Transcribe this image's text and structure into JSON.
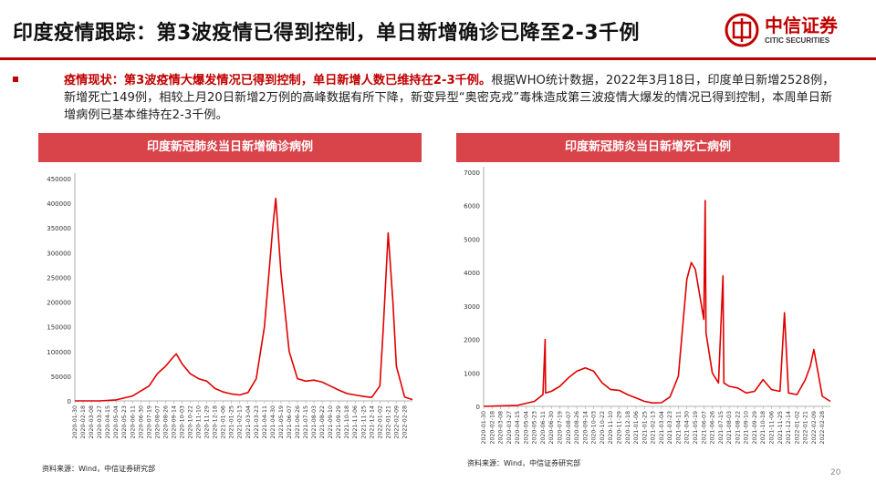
{
  "title": "印度疫情跟踪：第3波疫情已得到控制，单日新增确诊已降至2-3千例",
  "logo": {
    "name_cn": "中信证券",
    "name_en": "CITIC SECURITIES"
  },
  "summary": {
    "highlight": "疫情现状：第3波疫情大爆发情况已得到控制，单日新增人数已维持在2-3千例。",
    "body": "根据WHO统计数据，2022年3月18日，印度单日新增2528例，新增死亡149例，相较上月20日新增2万例的高峰数据有所下降，新变异型“奥密克戎”毒株造成第三波疫情大爆发的情况已得到控制，本周单日新增病例已基本维持在2-3千例。"
  },
  "colors": {
    "accent": "#c00000",
    "header": "#d9434a",
    "line": "#e00000"
  },
  "source_left": "资料来源：Wind，中信证券研究部",
  "source_right": "资料来源：Wind，中信证券研究部",
  "page_number": "20",
  "chart_data": [
    {
      "type": "line",
      "title": "印度新冠肺炎当日新增确诊病例",
      "xlabel": "",
      "ylabel": "",
      "ylim": [
        0,
        450000
      ],
      "yticks": [
        "0",
        "50000",
        "100000",
        "150000",
        "200000",
        "250000",
        "300000",
        "350000",
        "400000",
        "450000"
      ],
      "xticks": [
        "2020-01-30",
        "2020-02-18",
        "2020-03-08",
        "2020-03-27",
        "2020-04-15",
        "2020-05-04",
        "2020-05-23",
        "2020-06-11",
        "2020-06-30",
        "2020-07-19",
        "2020-08-07",
        "2020-08-26",
        "2020-09-14",
        "2020-10-03",
        "2020-10-22",
        "2020-11-10",
        "2020-11-29",
        "2020-12-18",
        "2021-01-06",
        "2021-01-25",
        "2021-02-13",
        "2021-03-04",
        "2021-03-23",
        "2021-04-11",
        "2021-04-30",
        "2021-05-19",
        "2021-06-07",
        "2021-06-26",
        "2021-07-15",
        "2021-08-03",
        "2021-08-22",
        "2021-09-10",
        "2021-09-29",
        "2021-10-18",
        "2021-11-06",
        "2021-11-25",
        "2021-12-14",
        "2022-01-02",
        "2022-01-21",
        "2022-02-09",
        "2022-02-28"
      ],
      "series": [
        {
          "x": [
            "2020-01-30",
            "2020-03-27",
            "2020-05-04",
            "2020-06-11",
            "2020-07-19",
            "2020-08-07",
            "2020-08-26",
            "2020-09-14",
            "2020-09-20",
            "2020-10-03",
            "2020-10-22",
            "2020-11-10",
            "2020-11-29",
            "2020-12-18",
            "2021-01-06",
            "2021-01-25",
            "2021-02-13",
            "2021-03-04",
            "2021-03-23",
            "2021-04-11",
            "2021-04-30",
            "2021-05-07",
            "2021-05-19",
            "2021-06-07",
            "2021-06-26",
            "2021-07-15",
            "2021-08-03",
            "2021-08-22",
            "2021-09-10",
            "2021-09-29",
            "2021-10-18",
            "2021-11-06",
            "2021-11-25",
            "2021-12-14",
            "2022-01-02",
            "2022-01-10",
            "2022-01-21",
            "2022-02-01",
            "2022-02-09",
            "2022-02-28",
            "2022-03-18"
          ],
          "values": [
            0,
            0,
            2000,
            10000,
            30000,
            55000,
            70000,
            90000,
            95000,
            75000,
            55000,
            45000,
            40000,
            25000,
            18000,
            14000,
            12000,
            17000,
            45000,
            150000,
            350000,
            410000,
            260000,
            100000,
            45000,
            40000,
            42000,
            38000,
            30000,
            22000,
            15000,
            12000,
            9000,
            7000,
            30000,
            150000,
            340000,
            200000,
            70000,
            8000,
            2528
          ]
        }
      ]
    },
    {
      "type": "line",
      "title": "印度新冠肺炎当日新增死亡病例",
      "xlabel": "",
      "ylabel": "",
      "ylim": [
        0,
        7000
      ],
      "yticks": [
        "0",
        "1000",
        "2000",
        "3000",
        "4000",
        "5000",
        "6000",
        "7000"
      ],
      "xticks": [
        "2020-01-30",
        "2020-02-18",
        "2020-03-08",
        "2020-03-27",
        "2020-04-15",
        "2020-05-04",
        "2020-05-23",
        "2020-06-11",
        "2020-06-30",
        "2020-07-19",
        "2020-08-07",
        "2020-08-26",
        "2020-09-14",
        "2020-10-03",
        "2020-10-22",
        "2020-11-10",
        "2020-11-29",
        "2020-12-18",
        "2021-01-06",
        "2021-01-25",
        "2021-02-13",
        "2021-03-04",
        "2021-03-23",
        "2021-04-11",
        "2021-04-30",
        "2021-05-19",
        "2021-06-07",
        "2021-06-26",
        "2021-07-15",
        "2021-08-03",
        "2021-08-22",
        "2021-09-10",
        "2021-09-29",
        "2021-10-18",
        "2021-11-06",
        "2021-11-25",
        "2021-12-14",
        "2022-01-02",
        "2022-01-21",
        "2022-02-09",
        "2022-02-28"
      ],
      "series": [
        {
          "x": [
            "2020-01-30",
            "2020-04-15",
            "2020-05-23",
            "2020-06-11",
            "2020-06-16",
            "2020-06-17",
            "2020-06-30",
            "2020-07-19",
            "2020-08-07",
            "2020-08-26",
            "2020-09-14",
            "2020-10-03",
            "2020-10-22",
            "2020-11-10",
            "2020-11-29",
            "2020-12-18",
            "2021-01-06",
            "2021-01-25",
            "2021-02-13",
            "2021-03-04",
            "2021-03-23",
            "2021-04-11",
            "2021-04-30",
            "2021-05-10",
            "2021-05-19",
            "2021-06-07",
            "2021-06-10",
            "2021-06-12",
            "2021-06-26",
            "2021-07-10",
            "2021-07-20",
            "2021-07-22",
            "2021-08-03",
            "2021-08-22",
            "2021-09-10",
            "2021-09-29",
            "2021-10-18",
            "2021-11-06",
            "2021-11-25",
            "2021-12-05",
            "2021-12-14",
            "2022-01-02",
            "2022-01-21",
            "2022-02-01",
            "2022-02-09",
            "2022-02-28",
            "2022-03-18"
          ],
          "values": [
            0,
            30,
            150,
            350,
            2000,
            400,
            450,
            600,
            850,
            1050,
            1150,
            1050,
            700,
            500,
            480,
            350,
            250,
            150,
            100,
            110,
            280,
            900,
            3800,
            4300,
            4100,
            2600,
            6150,
            2200,
            1000,
            700,
            3900,
            700,
            600,
            550,
            400,
            450,
            800,
            500,
            450,
            2800,
            400,
            350,
            800,
            1200,
            1700,
            300,
            149
          ]
        }
      ]
    }
  ]
}
